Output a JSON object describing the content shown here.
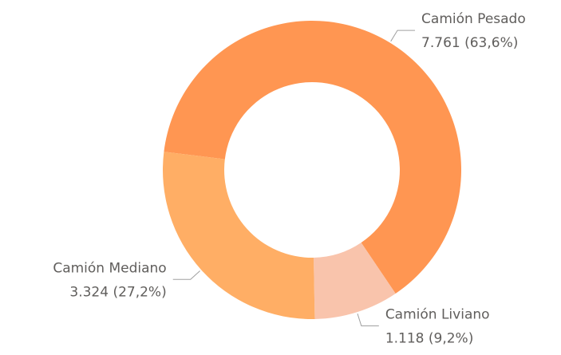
{
  "chart_data": {
    "type": "donut",
    "categories": [
      "Camión Pesado",
      "Camión Liviano",
      "Camión Mediano"
    ],
    "values": [
      7761,
      1118,
      3324
    ],
    "value_labels": [
      "7.761 (63,6%)",
      "1.118 (9,2%)",
      "3.324 (27,2%)"
    ],
    "colors": [
      "#FF9652",
      "#F9C4AC",
      "#FFAE65"
    ]
  }
}
